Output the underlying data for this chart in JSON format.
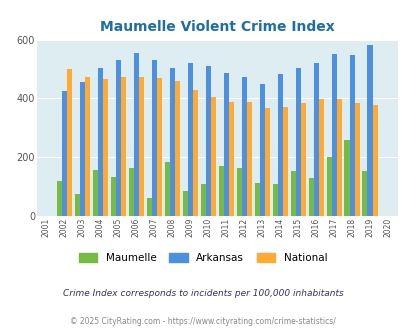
{
  "title": "Maumelle Violent Crime Index",
  "years": [
    2001,
    2002,
    2003,
    2004,
    2005,
    2006,
    2007,
    2008,
    2009,
    2010,
    2011,
    2012,
    2013,
    2014,
    2015,
    2016,
    2017,
    2018,
    2019,
    2020
  ],
  "maumelle": [
    0,
    120,
    75,
    158,
    132,
    165,
    60,
    185,
    85,
    110,
    172,
    162,
    112,
    110,
    152,
    130,
    200,
    258,
    152,
    0
  ],
  "arkansas": [
    0,
    425,
    455,
    505,
    530,
    555,
    530,
    505,
    520,
    510,
    488,
    472,
    448,
    483,
    505,
    520,
    550,
    548,
    583,
    0
  ],
  "national": [
    0,
    499,
    472,
    465,
    472,
    472,
    468,
    458,
    430,
    405,
    387,
    387,
    368,
    372,
    383,
    397,
    399,
    383,
    379,
    0
  ],
  "maumelle_color": "#77bb44",
  "arkansas_color": "#4d90e0",
  "national_color": "#ffaa33",
  "bg_color": "#deedf2",
  "title_color": "#1a6fa8",
  "ylim": [
    0,
    600
  ],
  "yticks": [
    0,
    200,
    400,
    600
  ],
  "subtitle": "Crime Index corresponds to incidents per 100,000 inhabitants",
  "footer": "© 2025 CityRating.com - https://www.cityrating.com/crime-statistics/",
  "legend_labels": [
    "Maumelle",
    "Arkansas",
    "National"
  ]
}
